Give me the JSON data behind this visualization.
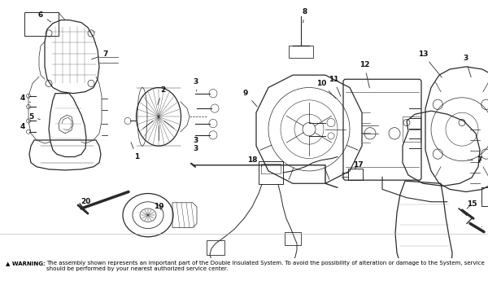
{
  "background_color": "#ffffff",
  "warning_text": "The assembly shown represents an important part of the Double Insulated System. To avoid the possibility of alteration or damage to the System, service should be performed by your nearest authorized service center.",
  "line_color": "#2a2a2a",
  "label_color": "#111111",
  "lw_main": 0.9,
  "lw_thin": 0.5,
  "lw_thick": 1.2,
  "label_fs": 6.5,
  "warn_fs": 5.0,
  "fig_w": 6.0,
  "fig_h": 3.45,
  "dpi": 100
}
